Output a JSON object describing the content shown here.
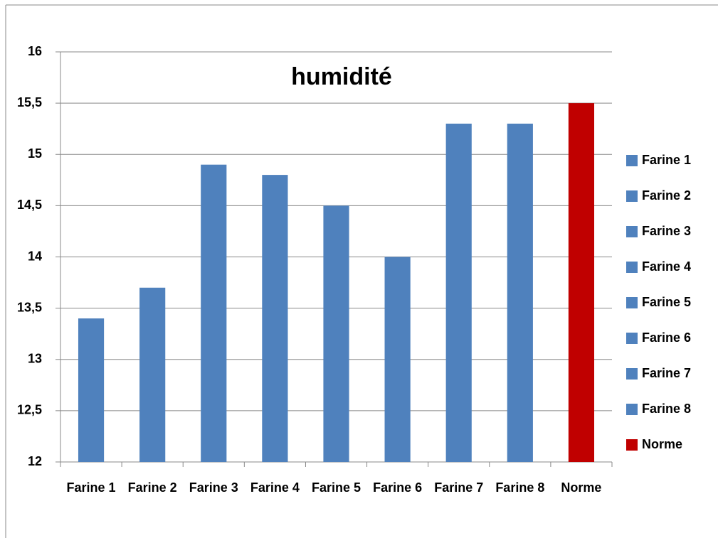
{
  "chart_data": {
    "type": "bar",
    "title": "humidité",
    "categories": [
      "Farine 1",
      "Farine 2",
      "Farine 3",
      "Farine 4",
      "Farine 5",
      "Farine 6",
      "Farine 7",
      "Farine 8",
      "Norme"
    ],
    "values": [
      13.4,
      13.7,
      14.9,
      14.8,
      14.5,
      14.0,
      15.3,
      15.3,
      15.5
    ],
    "colors": [
      "#4f81bd",
      "#4f81bd",
      "#4f81bd",
      "#4f81bd",
      "#4f81bd",
      "#4f81bd",
      "#4f81bd",
      "#4f81bd",
      "#c00000"
    ],
    "ylim": [
      12,
      16
    ],
    "yticks": [
      12,
      {
        "value": 12.5,
        "label": "12,5"
      },
      13,
      {
        "value": 13.5,
        "label": "13,5"
      },
      14,
      {
        "value": 14.5,
        "label": "14,5"
      },
      15,
      {
        "value": 15.5,
        "label": "15,5"
      },
      16
    ],
    "grid": true,
    "legend": "right"
  }
}
